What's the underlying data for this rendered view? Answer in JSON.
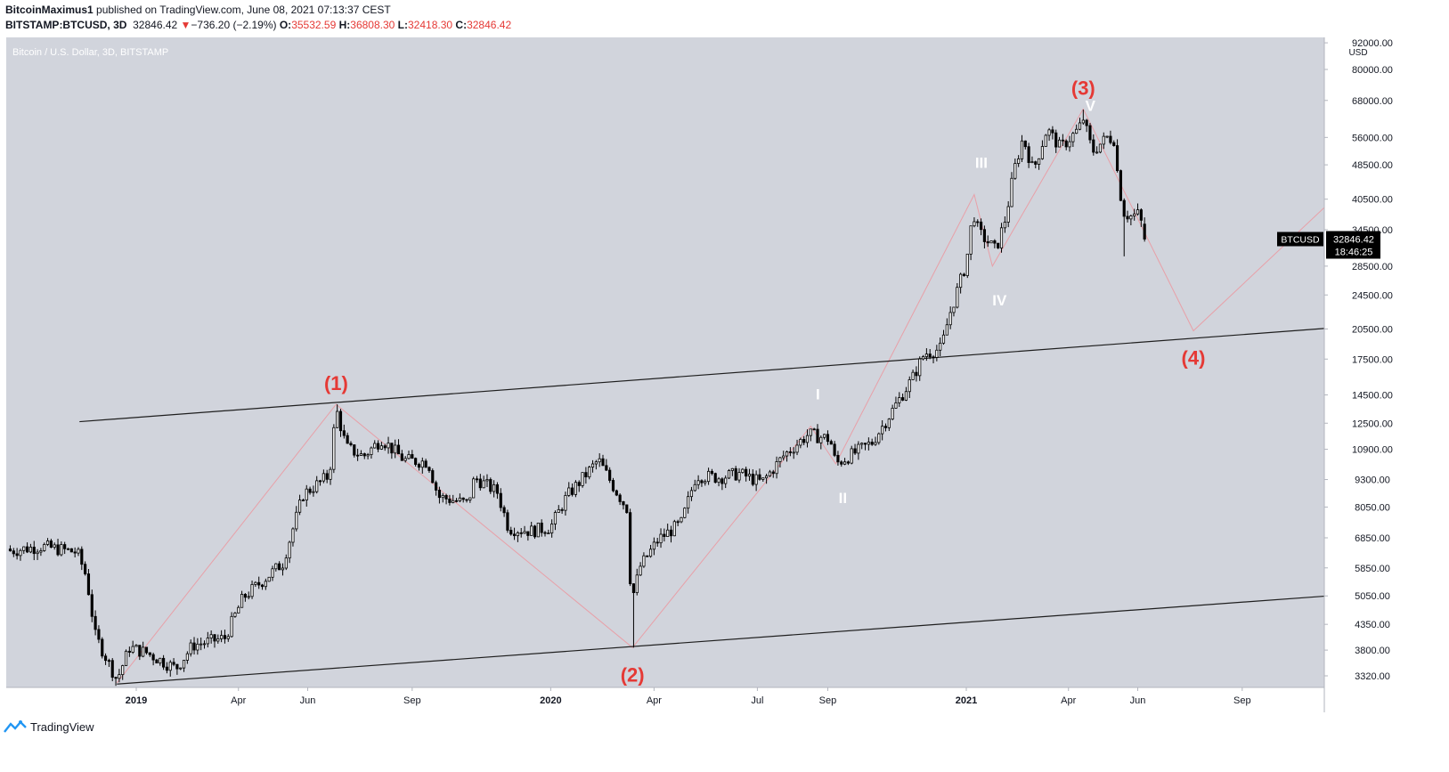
{
  "header": {
    "publisher": "BitcoinMaximus1",
    "published_text": " published on TradingView.com, June 08, 2021 07:13:37 CEST",
    "symbol": "BITSTAMP:BTCUSD, 3D",
    "last": "32846.42",
    "change_arrow": "▼",
    "change": "−736.20 (−2.19%)",
    "o_label": "O:",
    "o_value": "35532.59",
    "h_label": "H:",
    "h_value": "36808.30",
    "l_label": "L:",
    "l_value": "32418.30",
    "c_label": "C:",
    "c_value": "32846.42"
  },
  "colors": {
    "plot_bg": "#d1d4dc",
    "candle": "#000000",
    "wave_line": "#e8a0a8",
    "wave_label": "#e53935",
    "sub_wave_label": "#ffffff",
    "channel": "#1e1e1e"
  },
  "chart_data": {
    "type": "candlestick",
    "title": "Bitcoin / U.S. Dollar, 3D, BITSTAMP",
    "y_scale": "log",
    "ylim": [
      3000,
      92000
    ],
    "currency": "USD",
    "y_ticks": [
      "92000.00",
      "80000.00",
      "68000.00",
      "56000.00",
      "48500.00",
      "40500.00",
      "34500.00",
      "28500.00",
      "24500.00",
      "20500.00",
      "17500.00",
      "14500.00",
      "12500.00",
      "10900.00",
      "9300.00",
      "8050.00",
      "6850.00",
      "5850.00",
      "5050.00",
      "4350.00",
      "3800.00",
      "3320.00"
    ],
    "x_ticks": [
      "2019",
      "Apr",
      "Jun",
      "Sep",
      "2020",
      "Apr",
      "Jul",
      "Sep",
      "2021",
      "Apr",
      "Jun",
      "Sep"
    ],
    "last_price": "32846.42",
    "countdown": "18:46:25",
    "price_tag_symbol": "BTCUSD",
    "price_path": [
      [
        "2018-09-12",
        6400
      ],
      [
        "2018-10-10",
        6550
      ],
      [
        "2018-11-10",
        6350
      ],
      [
        "2018-11-18",
        5600
      ],
      [
        "2018-11-26",
        4100
      ],
      [
        "2018-12-15",
        3250
      ],
      [
        "2018-12-26",
        3850
      ],
      [
        "2019-01-10",
        3750
      ],
      [
        "2019-02-05",
        3450
      ],
      [
        "2019-02-20",
        3900
      ],
      [
        "2019-03-20",
        4050
      ],
      [
        "2019-04-05",
        5000
      ],
      [
        "2019-05-10",
        6000
      ],
      [
        "2019-05-28",
        8600
      ],
      [
        "2019-06-20",
        9500
      ],
      [
        "2019-06-26",
        13500
      ],
      [
        "2019-07-05",
        11000
      ],
      [
        "2019-07-20",
        10500
      ],
      [
        "2019-08-05",
        11500
      ],
      [
        "2019-08-25",
        10300
      ],
      [
        "2019-09-15",
        10200
      ],
      [
        "2019-09-24",
        8500
      ],
      [
        "2019-10-20",
        8200
      ],
      [
        "2019-10-26",
        9400
      ],
      [
        "2019-11-15",
        8700
      ],
      [
        "2019-11-25",
        7200
      ],
      [
        "2019-12-15",
        7100
      ],
      [
        "2020-01-01",
        7250
      ],
      [
        "2020-01-15",
        8500
      ],
      [
        "2020-02-12",
        10300
      ],
      [
        "2020-02-26",
        8900
      ],
      [
        "2020-03-08",
        8000
      ],
      [
        "2020-03-12",
        4900
      ],
      [
        "2020-03-20",
        5900
      ],
      [
        "2020-04-05",
        6800
      ],
      [
        "2020-04-25",
        7400
      ],
      [
        "2020-05-08",
        9500
      ],
      [
        "2020-05-28",
        9400
      ],
      [
        "2020-06-15",
        9600
      ],
      [
        "2020-07-05",
        9150
      ],
      [
        "2020-07-25",
        10600
      ],
      [
        "2020-08-15",
        11800
      ],
      [
        "2020-09-03",
        11500
      ],
      [
        "2020-09-08",
        10100
      ],
      [
        "2020-09-25",
        10700
      ],
      [
        "2020-10-10",
        11300
      ],
      [
        "2020-10-25",
        13000
      ],
      [
        "2020-11-15",
        15900
      ],
      [
        "2020-11-25",
        18000
      ],
      [
        "2020-12-10",
        18500
      ],
      [
        "2020-12-17",
        22000
      ],
      [
        "2021-01-01",
        29000
      ],
      [
        "2021-01-07",
        38000
      ],
      [
        "2021-01-12",
        34000
      ],
      [
        "2021-01-27",
        31000
      ],
      [
        "2021-02-05",
        37000
      ],
      [
        "2021-02-12",
        47000
      ],
      [
        "2021-02-20",
        56000
      ],
      [
        "2021-03-01",
        47000
      ],
      [
        "2021-03-13",
        58500
      ],
      [
        "2021-03-25",
        53000
      ],
      [
        "2021-04-10",
        58500
      ],
      [
        "2021-04-14",
        61800
      ],
      [
        "2021-04-22",
        52000
      ],
      [
        "2021-05-05",
        56000
      ],
      [
        "2021-05-11",
        55500
      ],
      [
        "2021-05-13",
        49000
      ],
      [
        "2021-05-19",
        38000
      ],
      [
        "2021-05-25",
        37000
      ],
      [
        "2021-06-02",
        37500
      ],
      [
        "2021-06-08",
        32846
      ]
    ],
    "wave_path": [
      [
        "2018-12-15",
        3200
      ],
      [
        "2019-06-26",
        13800
      ],
      [
        "2020-03-13",
        3850
      ],
      [
        "2020-08-17",
        12300
      ],
      [
        "2020-09-08",
        10100
      ],
      [
        "2021-01-08",
        41500
      ],
      [
        "2021-01-24",
        28500
      ],
      [
        "2021-04-14",
        65000
      ],
      [
        "2021-07-20",
        20300
      ],
      [
        "2021-12-05",
        44000
      ]
    ],
    "channel_upper": [
      [
        "2018-11-12",
        12600
      ],
      [
        "2021-12-31",
        21000
      ]
    ],
    "channel_lower": [
      [
        "2018-12-15",
        3180
      ],
      [
        "2021-12-31",
        5150
      ]
    ],
    "wave_labels": [
      {
        "text": "(1)",
        "date": "2019-06-26",
        "price": 13800,
        "pos": "above"
      },
      {
        "text": "(2)",
        "date": "2020-03-13",
        "price": 3850,
        "pos": "below"
      },
      {
        "text": "(3)",
        "date": "2021-04-14",
        "price": 65000,
        "pos": "above"
      },
      {
        "text": "(4)",
        "date": "2021-07-20",
        "price": 20300,
        "pos": "below"
      }
    ],
    "sub_wave_labels": [
      {
        "text": "I",
        "date": "2020-08-17",
        "price": 12300,
        "pos": "above"
      },
      {
        "text": "II",
        "date": "2020-09-08",
        "price": 10100,
        "pos": "below"
      },
      {
        "text": "III",
        "date": "2021-01-08",
        "price": 41500,
        "pos": "above"
      },
      {
        "text": "IV",
        "date": "2021-01-24",
        "price": 28500,
        "pos": "below"
      },
      {
        "text": "V",
        "date": "2021-04-14",
        "price": 65000,
        "pos": "below"
      }
    ]
  },
  "footer": {
    "brand": "TradingView"
  }
}
